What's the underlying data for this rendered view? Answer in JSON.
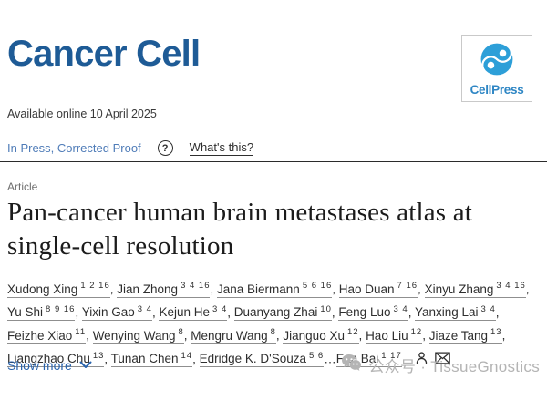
{
  "colors": {
    "brand-blue": "#1e5b96",
    "logo-blue": "#2d9fd8",
    "logo-text-blue": "#2e86c4",
    "status-blue": "#4f7cb8",
    "link-blue": "#2a64ad",
    "text-dark": "#2e2e2e",
    "label-gray": "#6f6f6f",
    "watermark-gray": "#b4b4b4"
  },
  "header": {
    "journal_title": "Cancer Cell",
    "publisher_logo_label": "CellPress",
    "available_online": "Available online 10 April 2025"
  },
  "status_bar": {
    "status_label": "In Press, Corrected Proof",
    "help_icon_glyph": "?",
    "help_link_label": "What's this?"
  },
  "article": {
    "type_label": "Article",
    "title": "Pan-cancer human brain metastases atlas at single-cell resolution",
    "authors": [
      {
        "name": "Xudong Xing",
        "sup": "1 2 16"
      },
      {
        "name": "Jian Zhong",
        "sup": "3 4 16"
      },
      {
        "name": "Jana Biermann",
        "sup": "5 6 16"
      },
      {
        "name": "Hao Duan",
        "sup": "7 16"
      },
      {
        "name": "Xinyu Zhang",
        "sup": "3 4 16"
      },
      {
        "name": "Yu Shi",
        "sup": "8 9 16"
      },
      {
        "name": "Yixin Gao",
        "sup": "3 4"
      },
      {
        "name": "Kejun He",
        "sup": "3 4"
      },
      {
        "name": "Duanyang Zhai",
        "sup": "10"
      },
      {
        "name": "Feng Luo",
        "sup": "3 4"
      },
      {
        "name": "Yanxing Lai",
        "sup": "3 4"
      },
      {
        "name": "Feizhe Xiao",
        "sup": "11"
      },
      {
        "name": "Wenying Wang",
        "sup": "8"
      },
      {
        "name": "Mengru Wang",
        "sup": "8"
      },
      {
        "name": "Jianguo Xu",
        "sup": "12"
      },
      {
        "name": "Hao Liu",
        "sup": "12"
      },
      {
        "name": "Jiaze Tang",
        "sup": "13"
      },
      {
        "name": "Liangzhao Chu",
        "sup": "13"
      },
      {
        "name": "Tunan Chen",
        "sup": "14"
      },
      {
        "name": "Edridge K. D'Souza",
        "sup": "5 6"
      },
      {
        "name": "Fan Bai",
        "sup": "1 17",
        "sep_before": "…"
      }
    ],
    "show_more_label": "Show more"
  },
  "watermark": {
    "label": "公众号 · TissueGnostics"
  }
}
